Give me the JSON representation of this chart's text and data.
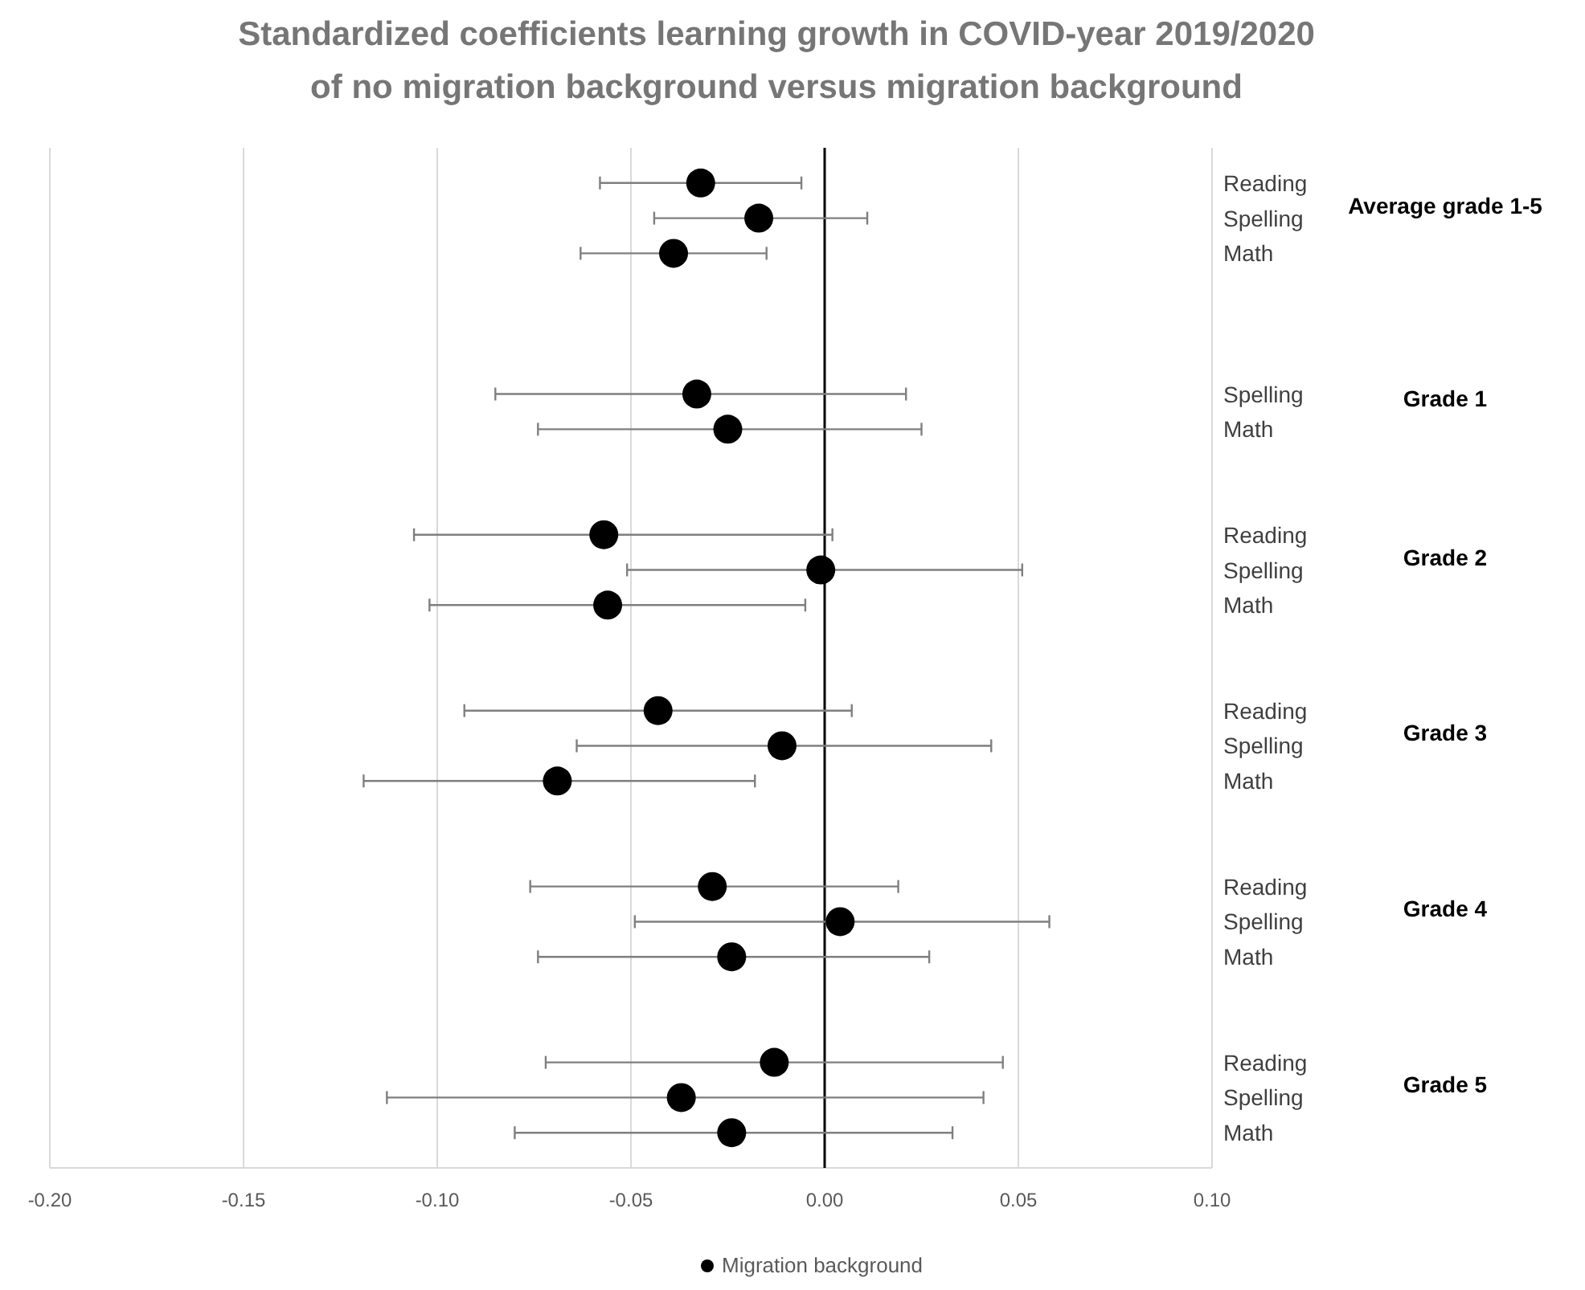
{
  "chart_data": {
    "type": "scatter",
    "title": "Standardized coefficients learning growth in COVID-year 2019/2020\nof no migration background versus migration background",
    "categories": [
      "Reading",
      "Spelling",
      "Math",
      null,
      null,
      null,
      "Spelling",
      "Math",
      null,
      null,
      "Reading",
      "Spelling",
      "Math",
      null,
      null,
      "Reading",
      "Spelling",
      "Math",
      null,
      null,
      "Reading",
      "Spelling",
      "Math",
      null,
      null,
      "Reading",
      "Spelling",
      "Math"
    ],
    "series": [
      {
        "name": "Migration background",
        "color": "#000000",
        "values": [
          -0.032,
          -0.017,
          -0.039,
          null,
          null,
          null,
          -0.033,
          -0.025,
          null,
          null,
          -0.057,
          -0.001,
          -0.056,
          null,
          null,
          -0.043,
          -0.011,
          -0.069,
          null,
          null,
          -0.029,
          0.004,
          -0.024,
          null,
          null,
          -0.013,
          -0.037,
          -0.024
        ],
        "errors": [
          [
            -0.058,
            -0.006
          ],
          [
            -0.044,
            0.011
          ],
          [
            -0.063,
            -0.015
          ],
          null,
          null,
          null,
          [
            -0.085,
            0.021
          ],
          [
            -0.074,
            0.025
          ],
          null,
          null,
          [
            -0.106,
            0.002
          ],
          [
            -0.051,
            0.051
          ],
          [
            -0.102,
            -0.005
          ],
          null,
          null,
          [
            -0.093,
            0.007
          ],
          [
            -0.064,
            0.043
          ],
          [
            -0.119,
            -0.018
          ],
          null,
          null,
          [
            -0.076,
            0.019
          ],
          [
            -0.049,
            0.058
          ],
          [
            -0.074,
            0.027
          ],
          null,
          null,
          [
            -0.072,
            0.046
          ],
          [
            -0.113,
            0.041
          ],
          [
            -0.08,
            0.033
          ]
        ]
      }
    ],
    "annotations": [
      "Average grade 1-5",
      "Grade 1",
      "Grade 2",
      "Grade 3",
      "Grade 4",
      "Grade 5"
    ],
    "xlim": [
      -0.2,
      0.1
    ],
    "xticks": [
      {
        "value": -0.2,
        "label": "-0.20"
      },
      {
        "value": -0.15,
        "label": "-0.15"
      },
      {
        "value": -0.1,
        "label": "-0.10"
      },
      {
        "value": -0.05,
        "label": "-0.05"
      },
      {
        "value": 0,
        "label": "0.00"
      },
      {
        "value": 0.05,
        "label": "0.05"
      },
      {
        "value": 0.1,
        "label": "0.10"
      }
    ],
    "ref_lines": [
      {
        "axis": "x",
        "value": 0,
        "color": "#000000"
      }
    ],
    "orientation": "horizontal",
    "grid": "x",
    "legend": "bottom",
    "marker": "circle"
  }
}
